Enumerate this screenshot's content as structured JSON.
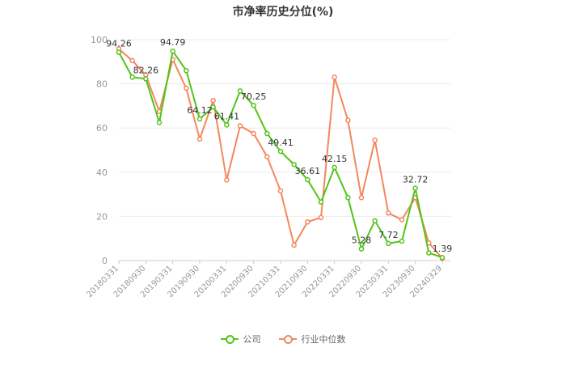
{
  "chart_data": {
    "type": "line",
    "title": "市净率历史分位(%)",
    "xlabel": "",
    "ylabel": "",
    "ylim": [
      0,
      100
    ],
    "yticks": [
      0,
      20,
      40,
      60,
      80,
      100
    ],
    "grid": true,
    "legend_position": "bottom",
    "x": [
      "20180331",
      "20180630",
      "20180930",
      "20181231",
      "20190331",
      "20190630",
      "20190930",
      "20191231",
      "20200331",
      "20200630",
      "20200930",
      "20201231",
      "20210331",
      "20210630",
      "20210930",
      "20211231",
      "20220331",
      "20220630",
      "20220930",
      "20221231",
      "20230331",
      "20230630",
      "20230930",
      "20231231",
      "20240329"
    ],
    "xtick_labels": [
      "20180331",
      "20180930",
      "20190331",
      "20190930",
      "20200331",
      "20200930",
      "20210331",
      "20210930",
      "20220331",
      "20220930",
      "20230331",
      "20230930",
      "20240329"
    ],
    "series": [
      {
        "name": "公司",
        "color": "#52c41a",
        "values": [
          94.26,
          83.0,
          82.26,
          62.5,
          94.79,
          86.0,
          64.12,
          69.5,
          61.41,
          76.8,
          70.25,
          57.5,
          49.41,
          43.5,
          36.61,
          26.5,
          42.15,
          28.5,
          5.28,
          18.0,
          7.72,
          8.8,
          32.72,
          3.5,
          1.39
        ],
        "labels": {
          "0": "94.26",
          "2": "82.26",
          "4": "94.79",
          "6": "64.12",
          "8": "61.41",
          "10": "70.25",
          "12": "49.41",
          "14": "36.61",
          "16": "42.15",
          "18": "5.28",
          "20": "7.72",
          "22": "32.72",
          "24": "1.39"
        }
      },
      {
        "name": "行业中位数",
        "color": "#f4875e",
        "values": [
          95.8,
          90.5,
          84.0,
          67.5,
          91.0,
          78.0,
          55.0,
          72.5,
          36.5,
          61.0,
          57.5,
          47.0,
          31.5,
          7.0,
          17.5,
          19.5,
          83.0,
          63.5,
          28.5,
          54.5,
          21.5,
          18.5,
          28.5,
          8.0,
          1.0
        ]
      }
    ]
  },
  "legend": {
    "items": [
      {
        "label": "公司",
        "color": "#52c41a"
      },
      {
        "label": "行业中位数",
        "color": "#f4875e"
      }
    ]
  }
}
